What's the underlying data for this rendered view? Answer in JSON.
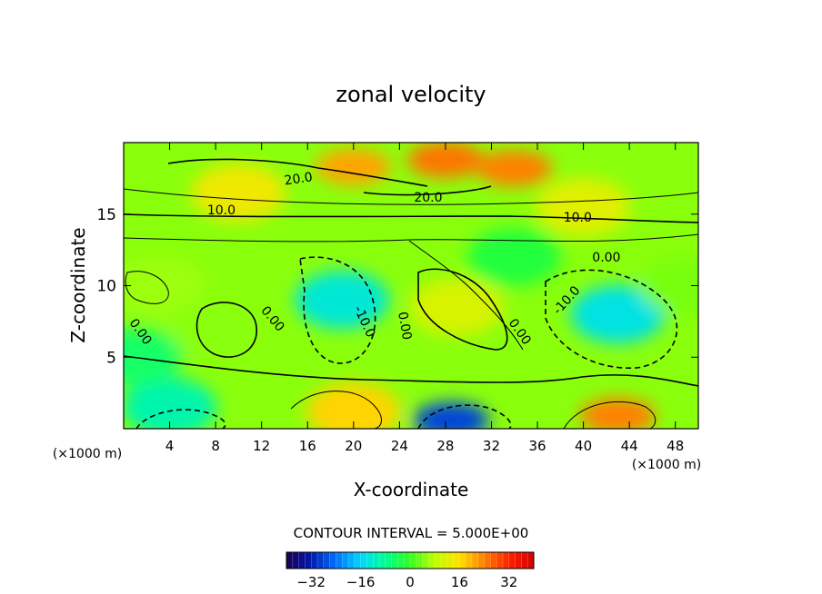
{
  "chart_data": {
    "type": "heatmap",
    "subtype": "filled-contour",
    "title": "zonal velocity",
    "xlabel": "X-coordinate",
    "ylabel": "Z-coordinate",
    "x_unit": "(×1000 m)",
    "z_unit": "(×1000 m)",
    "xlim": [
      0,
      50
    ],
    "ylim": [
      0,
      20
    ],
    "x_ticks": [
      4,
      8,
      12,
      16,
      20,
      24,
      28,
      32,
      36,
      40,
      44,
      48
    ],
    "y_ticks": [
      5,
      10,
      15
    ],
    "contour_interval_text": "CONTOUR INTERVAL = 5.000E+00",
    "colorbar": {
      "min": -40,
      "max": 40,
      "ticks": [
        -32,
        -16,
        0,
        16,
        32
      ],
      "colormap": "rainbow",
      "colors": [
        "#1a0050",
        "#0018b0",
        "#0070ff",
        "#00d8ff",
        "#00ff90",
        "#30ff20",
        "#c0ff00",
        "#ffe000",
        "#ff8000",
        "#ff2000",
        "#d00000"
      ]
    },
    "field_features": [
      {
        "x": 28,
        "z": 18.8,
        "value": 25
      },
      {
        "x": 34,
        "z": 18.2,
        "value": 24
      },
      {
        "x": 20,
        "z": 18.3,
        "value": 21
      },
      {
        "x": 10,
        "z": 16.5,
        "value": 14
      },
      {
        "x": 40,
        "z": 15.5,
        "value": 12
      },
      {
        "x": 3,
        "z": 10,
        "value": 6
      },
      {
        "x": 8,
        "z": 7,
        "value": 5
      },
      {
        "x": 29,
        "z": 8.5,
        "value": 11
      },
      {
        "x": 19,
        "z": 9,
        "value": -13
      },
      {
        "x": 43,
        "z": 8,
        "value": -14
      },
      {
        "x": 20,
        "z": 1.2,
        "value": 17
      },
      {
        "x": 28.5,
        "z": 0.6,
        "value": -28
      },
      {
        "x": 43,
        "z": 0.9,
        "value": 24
      },
      {
        "x": 4,
        "z": 1.5,
        "value": -10
      },
      {
        "x": 1,
        "z": 5,
        "value": -5
      },
      {
        "x": 49,
        "z": 10,
        "value": 4
      },
      {
        "x": 34,
        "z": 12,
        "value": -2
      }
    ],
    "contour_labels": [
      {
        "text": "20.0",
        "x": 15.2,
        "z": 17.5,
        "angle": -8
      },
      {
        "text": "20.0",
        "x": 26.5,
        "z": 16.2,
        "angle": 0
      },
      {
        "text": "10.0",
        "x": 8.5,
        "z": 15.3,
        "angle": 0
      },
      {
        "text": "10.0",
        "x": 39.5,
        "z": 14.8,
        "angle": 0
      },
      {
        "text": "0.00",
        "x": 42,
        "z": 12,
        "angle": 0
      },
      {
        "text": "0.00",
        "x": 13,
        "z": 7.7,
        "angle": 50
      },
      {
        "text": "-10.0",
        "x": 21,
        "z": 7.5,
        "angle": 65
      },
      {
        "text": "0.00",
        "x": 24.5,
        "z": 7.2,
        "angle": 80
      },
      {
        "text": "0.00",
        "x": 34.5,
        "z": 6.8,
        "angle": 55
      },
      {
        "text": "-10.0",
        "x": 38.5,
        "z": 9,
        "angle": -48
      },
      {
        "text": "0.00",
        "x": 1.5,
        "z": 6.8,
        "angle": 55
      }
    ]
  }
}
